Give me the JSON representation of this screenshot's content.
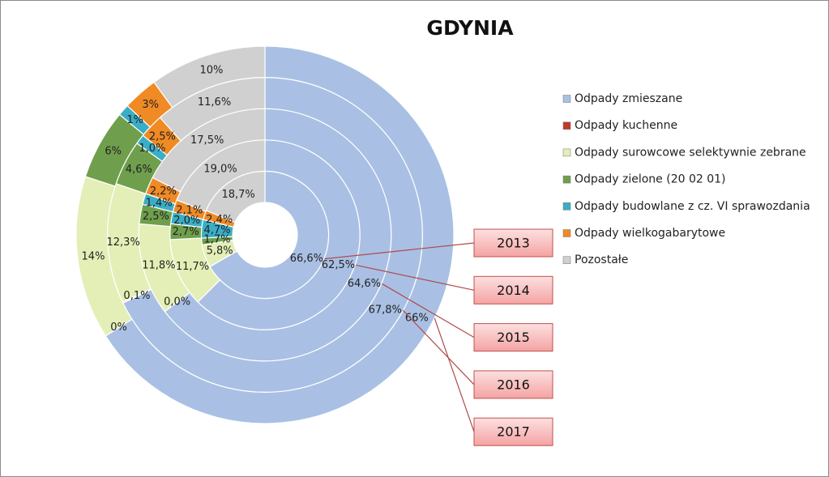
{
  "chart_data": {
    "type": "donut",
    "title": "GDYNIA",
    "categories": [
      "2013",
      "2014",
      "2015",
      "2016",
      "2017"
    ],
    "series": [
      {
        "name": "Odpady zmieszane",
        "color": "#a9c0e4",
        "values": [
          66.6,
          62.5,
          64.6,
          67.8,
          66
        ],
        "value_labels": [
          "66,6%",
          "62,5%",
          "64,6%",
          "67,8%",
          "66%"
        ]
      },
      {
        "name": "Odpady kuchenne",
        "color": "#c0392b",
        "values": [
          0,
          0,
          0.0,
          0.1,
          0
        ],
        "value_labels": [
          null,
          null,
          "0,0%",
          "0,1%",
          "0%"
        ]
      },
      {
        "name": "Odpady surowcowe selektywnie zebrane",
        "color": "#e3efb6",
        "values": [
          5.8,
          11.7,
          11.8,
          12.3,
          14
        ],
        "value_labels": [
          "5,8%",
          "11,7%",
          "11,8%",
          "12,3%",
          "14%"
        ]
      },
      {
        "name": "Odpady zielone (20 02 01)",
        "color": "#6f9f4c",
        "values": [
          1.7,
          2.7,
          2.5,
          4.6,
          6
        ],
        "value_labels": [
          "1,7%",
          "2,7%",
          "2,5%",
          "4,6%",
          "6%"
        ]
      },
      {
        "name": "Odpady budowlane z cz. VI sprawozdania",
        "color": "#3aaec6",
        "values": [
          4.7,
          2.0,
          1.4,
          1.0,
          1
        ],
        "value_labels": [
          "4,7%",
          "2,0%",
          "1,4%",
          "1,0%",
          "1%"
        ]
      },
      {
        "name": "Odpady wielkogabarytowe",
        "color": "#f08a24",
        "values": [
          2.4,
          2.1,
          2.2,
          2.5,
          3
        ],
        "value_labels": [
          "2,4%",
          "2,1%",
          "2,2%",
          "2,5%",
          "3%"
        ]
      },
      {
        "name": "Pozostałe",
        "color": "#d0d0d0",
        "values": [
          18.7,
          19.0,
          17.5,
          11.6,
          10
        ],
        "value_labels": [
          "18,7%",
          "19,0%",
          "17,5%",
          "11,6%",
          "10%"
        ]
      }
    ]
  }
}
